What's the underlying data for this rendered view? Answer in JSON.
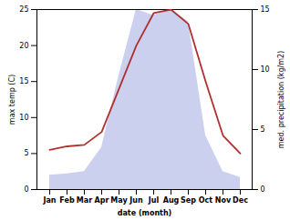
{
  "chart_data": {
    "type": "line",
    "categories": [
      "Jan",
      "Feb",
      "Mar",
      "Apr",
      "May",
      "Jun",
      "Jul",
      "Aug",
      "Sep",
      "Oct",
      "Nov",
      "Dec"
    ],
    "xlabel": "date (month)",
    "ylabel": "max temp (C)",
    "y2label": "med. precipitation (kg/m2)",
    "ylim": [
      0,
      25
    ],
    "yticks": [
      0,
      5,
      10,
      15,
      20,
      25
    ],
    "y2lim": [
      0,
      15
    ],
    "y2ticks": [
      0,
      5,
      10,
      15
    ],
    "grid": false,
    "series": [
      {
        "type": "area",
        "axis": "y2",
        "color": "#b8c0e8",
        "values": [
          1.2,
          1.3,
          1.5,
          3.5,
          9.5,
          15.0,
          14.5,
          15.0,
          14.0,
          4.5,
          1.5,
          1.0
        ]
      },
      {
        "type": "line",
        "color": "#b03030",
        "values": [
          5.5,
          6.0,
          6.2,
          8.0,
          14.0,
          20.0,
          24.5,
          25.0,
          23.0,
          15.0,
          7.5,
          5.0
        ]
      }
    ]
  }
}
